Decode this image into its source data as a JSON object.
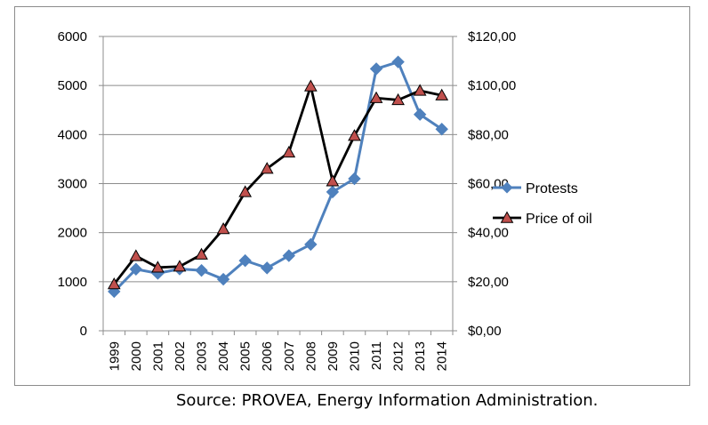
{
  "chart_data": {
    "type": "line",
    "categories": [
      "1999",
      "2000",
      "2001",
      "2002",
      "2003",
      "2004",
      "2005",
      "2006",
      "2007",
      "2008",
      "2009",
      "2010",
      "2011",
      "2012",
      "2013",
      "2014"
    ],
    "series": [
      {
        "name": "Protests",
        "axis": "left",
        "color": "#4f81bd",
        "marker": "diamond",
        "values": [
          800,
          1255,
          1170,
          1260,
          1230,
          1050,
          1430,
          1280,
          1530,
          1760,
          2830,
          3100,
          5340,
          5480,
          4410,
          4110
        ]
      },
      {
        "name": "Price of oil",
        "axis": "right",
        "color": "#000000",
        "marker_fill": "#c0504d",
        "marker": "triangle",
        "values": [
          19.0,
          30.5,
          25.8,
          26.2,
          31.1,
          41.5,
          56.6,
          66.1,
          72.7,
          99.7,
          61.0,
          79.5,
          94.9,
          94.1,
          97.9,
          96.0
        ]
      }
    ],
    "y_left": {
      "min": 0,
      "max": 6000,
      "ticks": [
        "0",
        "1000",
        "2000",
        "3000",
        "4000",
        "5000",
        "6000"
      ]
    },
    "y_right": {
      "min": 0,
      "max": 120,
      "ticks": [
        "$0,00",
        "$20,00",
        "$40,00",
        "$60,00",
        "$80,00",
        "$100,00",
        "$120,00"
      ]
    },
    "grid": "horizontal",
    "legend_position": "right"
  },
  "caption": "Source: PROVEA, Energy Information Administration."
}
